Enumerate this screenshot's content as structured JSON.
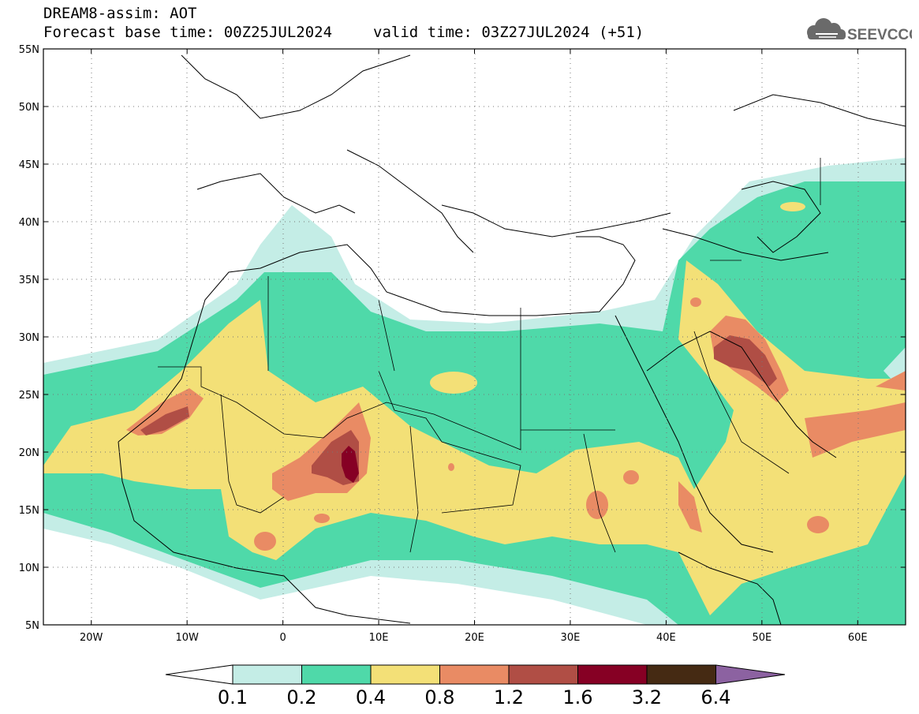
{
  "header": {
    "title": "DREAM8-assim: AOT",
    "base_time": "Forecast base time: 00Z25JUL2024",
    "valid_time": "valid time: 03Z27JUL2024 (+51)",
    "logo_text": "SEEVCCC",
    "logo_icon": "cloud-icon"
  },
  "map": {
    "lon_range": [
      -25,
      65
    ],
    "lat_range": [
      5,
      55
    ],
    "lat_labels": [
      "55N",
      "50N",
      "45N",
      "40N",
      "35N",
      "30N",
      "25N",
      "20N",
      "15N",
      "10N",
      "5N"
    ],
    "lon_labels": [
      "20W",
      "10W",
      "0",
      "10E",
      "20E",
      "30E",
      "40E",
      "50E",
      "60E"
    ],
    "grid": "dotted"
  },
  "colorbar": {
    "labels": [
      "0.1",
      "0.2",
      "0.4",
      "0.8",
      "1.2",
      "1.6",
      "3.2",
      "6.4"
    ],
    "colors": [
      "#ffffff",
      "#c4ede6",
      "#4fd9a9",
      "#f3e077",
      "#e98b64",
      "#b04e45",
      "#860024",
      "#452a13",
      "#8c62a1"
    ]
  }
}
